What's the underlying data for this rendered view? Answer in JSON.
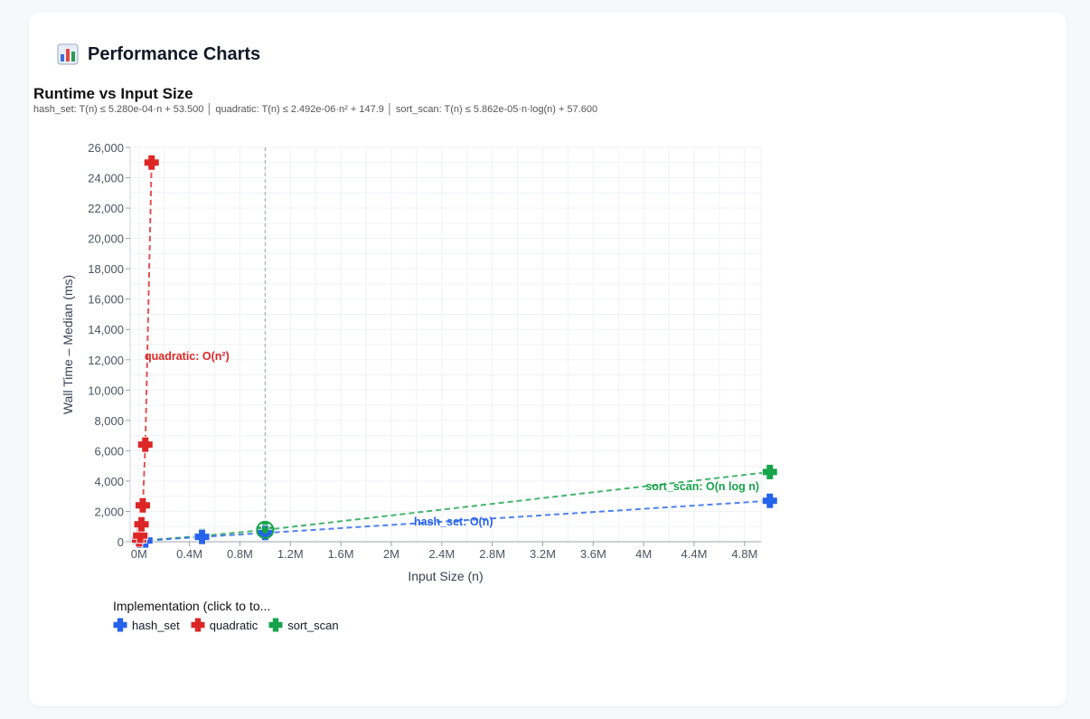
{
  "card": {
    "title": "Performance Charts",
    "icon": "bar-chart-icon"
  },
  "chart_data": {
    "type": "line",
    "title": "Runtime vs Input Size",
    "subtitle": "hash_set: T(n) ≤ 5.280e-04·n + 53.500  │  quadratic: T(n) ≤ 2.492e-06·n² + 147.9  │  sort_scan: T(n) ≤ 5.862e-05·n·log(n) + 57.600",
    "xlabel": "Input Size (n)",
    "ylabel": "Wall Time – Median (ms)",
    "xlim": [
      -70000,
      4930000
    ],
    "ylim": [
      0,
      26000
    ],
    "x_ticks": [
      0,
      400000,
      800000,
      1200000,
      1600000,
      2000000,
      2400000,
      2800000,
      3200000,
      3600000,
      4000000,
      4400000,
      4800000
    ],
    "x_tick_labels": [
      "0M",
      "0.4M",
      "0.8M",
      "1.2M",
      "1.6M",
      "2M",
      "2.4M",
      "2.8M",
      "3.2M",
      "3.6M",
      "4M",
      "4.4M",
      "4.8M"
    ],
    "y_ticks": [
      0,
      2000,
      4000,
      6000,
      8000,
      10000,
      12000,
      14000,
      16000,
      18000,
      20000,
      22000,
      24000,
      26000
    ],
    "y_tick_labels": [
      "0",
      "2,000",
      "4,000",
      "6,000",
      "8,000",
      "10,000",
      "12,000",
      "14,000",
      "16,000",
      "18,000",
      "20,000",
      "22,000",
      "24,000",
      "26,000"
    ],
    "grid": true,
    "reference_line_x": 1000000,
    "series": [
      {
        "name": "hash_set",
        "color": "#2563eb",
        "x": [
          1000,
          10000,
          50000,
          500000,
          1000000,
          5000000
        ],
        "y": [
          54,
          58,
          80,
          320,
          580,
          2700
        ],
        "fit_label": "hash_set: O(n)"
      },
      {
        "name": "quadratic",
        "color": "#dc2626",
        "x": [
          1000,
          10000,
          20000,
          30000,
          50000,
          100000
        ],
        "y": [
          150,
          400,
          1150,
          2400,
          6400,
          25000
        ],
        "fit_label": "quadratic: O(n²)"
      },
      {
        "name": "sort_scan",
        "color": "#16a34a",
        "x": [
          1000,
          10000,
          50000,
          500000,
          1000000,
          5000000
        ],
        "y": [
          58,
          68,
          90,
          380,
          780,
          4600
        ],
        "fit_label": "sort_scan: O(n log n)"
      }
    ],
    "legend": {
      "title": "Implementation (click to to...",
      "placement": "bottom-left"
    }
  }
}
